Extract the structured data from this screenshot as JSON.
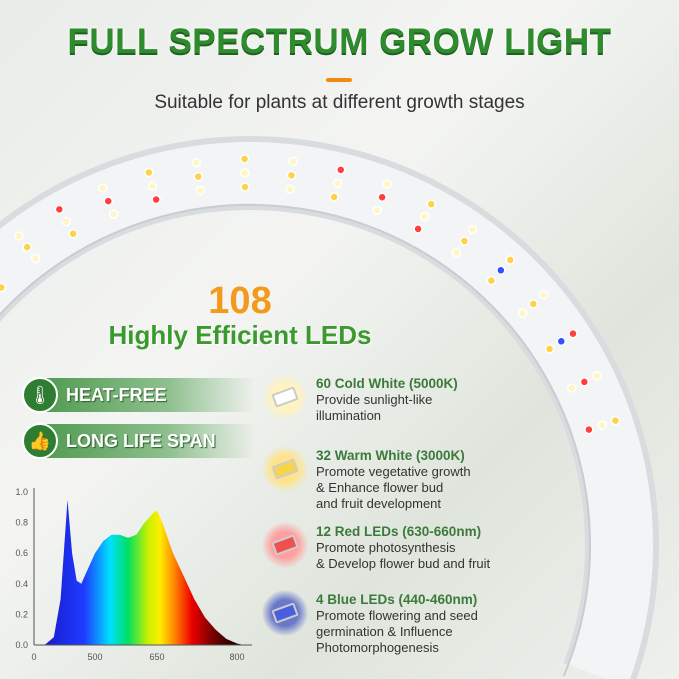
{
  "title": "FULL SPECTRUM GROW LIGHT",
  "subtitle": "Suitable for plants at different growth stages",
  "led_count": "108",
  "headline": "Highly Efficient LEDs",
  "colors": {
    "title_green": "#2e8b2e",
    "accent_orange": "#f39a1a",
    "badge_green": "#2f7d32"
  },
  "badges": [
    {
      "icon": "thermometer-down-icon",
      "label": "HEAT-FREE"
    },
    {
      "icon": "thumbs-up-icon",
      "label": "LONG LIFE SPAN"
    }
  ],
  "leds": [
    {
      "title": "60 Cold White (5000K)",
      "lines": [
        "Provide sunlight-like",
        "illumination"
      ],
      "color": "#ffffff",
      "glow": "#fff3c0"
    },
    {
      "title": "32 Warm White (3000K)",
      "lines": [
        "Promote vegetative growth",
        "& Enhance flower bud",
        "and fruit development"
      ],
      "color": "#f7d54a",
      "glow": "#ffe38a"
    },
    {
      "title": "12 Red LEDs (630-660nm)",
      "lines": [
        "Promote photosynthesis",
        "& Develop flower bud and fruit"
      ],
      "color": "#f05050",
      "glow": "#ffa0a0"
    },
    {
      "title": "4 Blue LEDs (440-460nm)",
      "lines": [
        "Promote flowering and seed",
        "germination & Influence",
        "Photomorphogenesis"
      ],
      "color": "#4a5ee0",
      "glow": "#6a78c8"
    }
  ],
  "chart_data": {
    "type": "area",
    "title": "",
    "xlabel": "",
    "ylabel": "",
    "x_ticks": [
      "0",
      "500",
      "650",
      "800"
    ],
    "y_ticks": [
      "0.0",
      "0.2",
      "0.4",
      "0.6",
      "0.8",
      "1.0"
    ],
    "ylim": [
      0,
      1.0
    ],
    "grid": false,
    "fill": "visible spectrum gradient",
    "x": [
      390,
      410,
      425,
      440,
      450,
      460,
      470,
      485,
      500,
      520,
      540,
      560,
      580,
      600,
      620,
      640,
      650,
      660,
      680,
      700,
      720,
      740,
      760,
      780,
      800,
      815
    ],
    "y": [
      0.0,
      0.05,
      0.3,
      0.95,
      0.6,
      0.42,
      0.4,
      0.5,
      0.6,
      0.68,
      0.72,
      0.72,
      0.7,
      0.72,
      0.8,
      0.86,
      0.88,
      0.8,
      0.6,
      0.45,
      0.3,
      0.18,
      0.1,
      0.04,
      0.01,
      0.0
    ]
  }
}
